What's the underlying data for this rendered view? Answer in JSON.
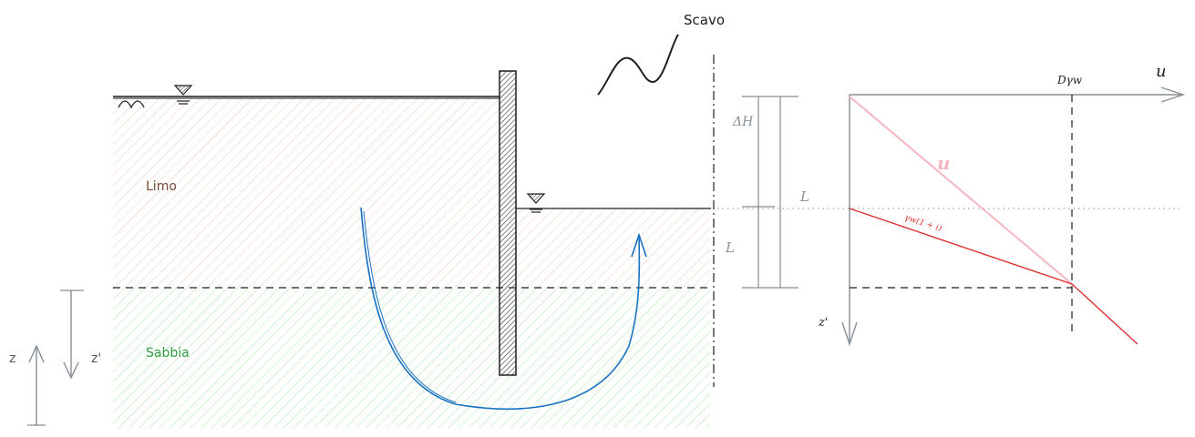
{
  "labels": {
    "excavation": "Scavo",
    "silt": "Limo",
    "sand": "Sabbia",
    "z": "z",
    "z_prime_left": "z'",
    "delta_h": "ΔH",
    "l_upper": "L",
    "l_lower": "L",
    "u_axis": "u",
    "z_prime_axis": "z'",
    "d_gamma_w": "Dγw",
    "u_line": "u",
    "gamma_line": "γw(1 + i)"
  },
  "colors": {
    "silt_hatch": "#e8b8ae",
    "sand_hatch": "#8fe08f",
    "silt_text": "#7a4b3a",
    "sand_text": "#2f9e44",
    "flow_line": "#1971c2",
    "u_line": "#f7b7c2",
    "gamma_line": "#e03131",
    "axis_gray": "#868e96",
    "ink": "#1e1e1e"
  },
  "icons": [
    "water-table-icon",
    "ground-surface-icon",
    "sheet-pile-icon",
    "flow-line-arrow-icon"
  ]
}
